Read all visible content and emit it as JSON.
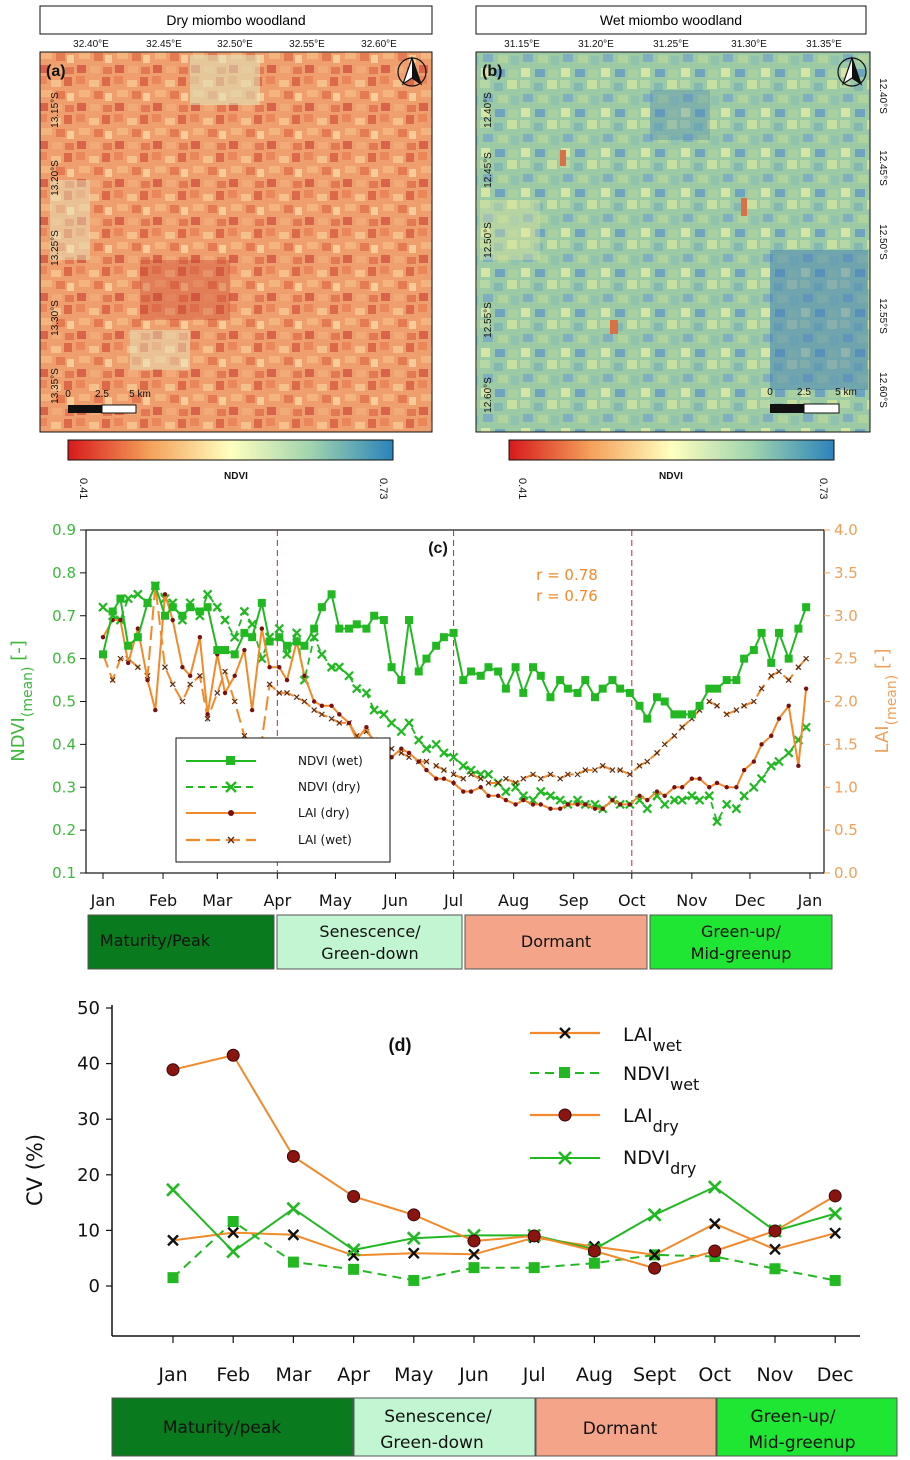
{
  "maps": [
    {
      "title": "Dry miombo woodland",
      "label": "(a)",
      "lon_ticks": [
        "32.40°E",
        "32.45°E",
        "32.50°E",
        "32.55°E",
        "32.60°E"
      ],
      "lat_ticks": [
        "13.15°S",
        "13.20°S",
        "13.25°S",
        "13.30°S",
        "13.35°S"
      ],
      "scalebar": [
        "0",
        "2.5",
        "5 km"
      ],
      "colorbar": {
        "min": "0.41",
        "max": "0.73",
        "label": "NDVI"
      }
    },
    {
      "title": "Wet miombo woodland",
      "label": "(b)",
      "lon_ticks": [
        "31.15°E",
        "31.20°E",
        "31.25°E",
        "31.30°E",
        "31.35°E"
      ],
      "lat_ticks": [
        "12.40°S",
        "12.45°S",
        "12.50°S",
        "12.55°S",
        "12.60°S"
      ],
      "scalebar": [
        "0",
        "2.5",
        "5 km"
      ],
      "colorbar": {
        "min": "0.41",
        "max": "0.73",
        "label": "NDVI"
      }
    }
  ],
  "chart_c": {
    "label": "(c)",
    "ylabel_left_main": "NDVI",
    "ylabel_left_sub": "(mean)",
    "ylabel_left_tail": " [-]",
    "ylabel_right_main": "LAI",
    "ylabel_right_sub": "(mean)",
    "ylabel_right_tail": " [-]",
    "left_ticks": [
      "0.1",
      "0.2",
      "0.3",
      "0.4",
      "0.5",
      "0.6",
      "0.7",
      "0.8",
      "0.9"
    ],
    "right_ticks": [
      "0.0",
      "0.5",
      "1.0",
      "1.5",
      "2.0",
      "2.5",
      "3.0",
      "3.5",
      "4.0"
    ],
    "months": [
      "Jan",
      "Feb",
      "Mar",
      "Apr",
      "May",
      "Jun",
      "Jul",
      "Aug",
      "Sep",
      "Oct",
      "Nov",
      "Dec",
      "Jan"
    ],
    "annotations": [
      "r = 0.78",
      "r = 0.76"
    ],
    "legend": [
      "NDVI (wet)",
      "NDVI (dry)",
      "LAI (dry)",
      "LAI (wet)"
    ],
    "phases": [
      "Maturity/Peak",
      "Senescence/",
      "Green-down",
      "Dormant",
      "Green-up/",
      "Mid-greenup"
    ]
  },
  "chart_d": {
    "label": "(d)",
    "ylabel": "CV (%)",
    "y_ticks": [
      "0",
      "10",
      "20",
      "30",
      "40",
      "50"
    ],
    "months": [
      "Jan",
      "Feb",
      "Mar",
      "Apr",
      "May",
      "Jun",
      "Jul",
      "Aug",
      "Sept",
      "Oct",
      "Nov",
      "Dec"
    ],
    "legend": [
      {
        "main": "LAI",
        "sub": "wet"
      },
      {
        "main": "NDVI",
        "sub": "wet"
      },
      {
        "main": "LAI",
        "sub": "dry"
      },
      {
        "main": "NDVI",
        "sub": "dry"
      }
    ],
    "phases": [
      "Maturity/peak",
      "Senescence/",
      "Green-down",
      "Dormant",
      "Green-up/",
      "Mid-greenup"
    ]
  },
  "colors": {
    "ndvi_green": "#22b822",
    "lai_orange": "#f08a2a",
    "dark_red_marker": "#7a1010",
    "phase_maturity": "#0a7a1e",
    "phase_senescence": "#c2f5d2",
    "phase_dormant": "#f4a488",
    "phase_greenup": "#1ee632"
  },
  "chart_data": [
    {
      "type": "line",
      "title": "(c)",
      "x_unit": "day of year",
      "xlim": [
        1,
        366
      ],
      "ylim_left": [
        0.1,
        0.9
      ],
      "ylim_right": [
        0.0,
        4.0
      ],
      "vertical_lines_day": [
        91,
        182,
        274
      ],
      "series": [
        {
          "name": "NDVI (wet)",
          "axis": "left",
          "x": [
            1,
            6,
            10,
            14,
            19,
            24,
            28,
            33,
            37,
            42,
            46,
            51,
            55,
            60,
            64,
            69,
            74,
            78,
            83,
            87,
            92,
            96,
            101,
            105,
            110,
            114,
            119,
            123,
            128,
            132,
            137,
            141,
            146,
            150,
            155,
            159,
            164,
            168,
            173,
            177,
            182,
            187,
            191,
            196,
            200,
            205,
            209,
            214,
            218,
            223,
            227,
            232,
            237,
            241,
            246,
            250,
            255,
            259,
            264,
            268,
            273,
            278,
            282,
            287,
            291,
            296,
            300,
            305,
            309,
            314,
            318,
            323,
            328,
            332,
            337,
            341,
            346,
            350,
            355,
            360,
            364
          ],
          "y": [
            0.61,
            0.71,
            0.74,
            0.63,
            0.65,
            0.73,
            0.77,
            0.7,
            0.72,
            0.7,
            0.72,
            0.71,
            0.72,
            0.62,
            0.62,
            0.61,
            0.66,
            0.65,
            0.73,
            0.64,
            0.65,
            0.63,
            0.64,
            0.63,
            0.67,
            0.72,
            0.75,
            0.67,
            0.67,
            0.68,
            0.67,
            0.7,
            0.69,
            0.58,
            0.55,
            0.69,
            0.57,
            0.6,
            0.63,
            0.65,
            0.66,
            0.55,
            0.57,
            0.56,
            0.58,
            0.57,
            0.53,
            0.58,
            0.52,
            0.58,
            0.56,
            0.51,
            0.55,
            0.53,
            0.52,
            0.55,
            0.51,
            0.53,
            0.55,
            0.53,
            0.52,
            0.49,
            0.46,
            0.51,
            0.5,
            0.47,
            0.47,
            0.47,
            0.49,
            0.53,
            0.53,
            0.55,
            0.55,
            0.6,
            0.62,
            0.66,
            0.59,
            0.66,
            0.6,
            0.67,
            0.72
          ]
        },
        {
          "name": "NDVI (dry)",
          "axis": "left",
          "x": [
            1,
            6,
            10,
            14,
            19,
            24,
            28,
            33,
            37,
            42,
            46,
            51,
            55,
            60,
            64,
            69,
            74,
            78,
            83,
            87,
            92,
            96,
            101,
            105,
            110,
            114,
            119,
            123,
            128,
            132,
            137,
            141,
            146,
            150,
            155,
            159,
            164,
            168,
            173,
            177,
            182,
            187,
            191,
            196,
            200,
            205,
            209,
            214,
            218,
            223,
            227,
            232,
            237,
            241,
            246,
            250,
            255,
            259,
            264,
            268,
            273,
            278,
            282,
            287,
            291,
            296,
            300,
            305,
            309,
            314,
            318,
            323,
            328,
            332,
            337,
            341,
            346,
            350,
            355,
            360,
            364
          ],
          "y": [
            0.72,
            0.7,
            0.69,
            0.74,
            0.75,
            0.73,
            0.77,
            0.74,
            0.73,
            0.69,
            0.73,
            0.7,
            0.75,
            0.72,
            0.69,
            0.65,
            0.71,
            0.68,
            0.6,
            0.65,
            0.67,
            0.61,
            0.66,
            0.55,
            0.65,
            0.61,
            0.58,
            0.58,
            0.56,
            0.53,
            0.52,
            0.48,
            0.47,
            0.45,
            0.43,
            0.45,
            0.41,
            0.39,
            0.4,
            0.38,
            0.37,
            0.35,
            0.34,
            0.33,
            0.33,
            0.31,
            0.29,
            0.3,
            0.28,
            0.27,
            0.29,
            0.28,
            0.27,
            0.26,
            0.27,
            0.26,
            0.26,
            0.25,
            0.27,
            0.26,
            0.26,
            0.27,
            0.25,
            0.28,
            0.26,
            0.27,
            0.27,
            0.28,
            0.27,
            0.28,
            0.22,
            0.26,
            0.25,
            0.28,
            0.3,
            0.32,
            0.35,
            0.36,
            0.38,
            0.41,
            0.44
          ]
        },
        {
          "name": "LAI (dry)",
          "axis": "right",
          "x": [
            1,
            6,
            10,
            14,
            19,
            24,
            28,
            33,
            37,
            42,
            46,
            51,
            55,
            60,
            64,
            69,
            74,
            78,
            83,
            87,
            92,
            96,
            101,
            105,
            110,
            114,
            119,
            123,
            128,
            132,
            137,
            141,
            146,
            150,
            155,
            159,
            164,
            168,
            173,
            177,
            182,
            187,
            191,
            196,
            200,
            205,
            209,
            214,
            218,
            223,
            227,
            232,
            237,
            241,
            246,
            250,
            255,
            259,
            264,
            268,
            273,
            278,
            282,
            287,
            291,
            296,
            300,
            305,
            309,
            314,
            318,
            323,
            328,
            332,
            337,
            341,
            346,
            350,
            355,
            360,
            364
          ],
          "y": [
            2.75,
            2.95,
            2.95,
            2.45,
            2.85,
            2.25,
            1.9,
            3.25,
            2.95,
            2.4,
            2.3,
            2.75,
            1.85,
            2.55,
            2.1,
            2.3,
            2.6,
            1.9,
            2.85,
            2.4,
            2.4,
            2.25,
            2.7,
            2.3,
            2.0,
            1.95,
            1.95,
            1.85,
            1.75,
            1.55,
            1.7,
            1.5,
            1.4,
            1.35,
            1.45,
            1.4,
            1.3,
            1.2,
            1.1,
            1.1,
            1.05,
            0.95,
            0.95,
            1.0,
            0.9,
            0.9,
            0.85,
            0.8,
            0.85,
            0.8,
            0.8,
            0.75,
            0.75,
            0.8,
            0.8,
            0.8,
            0.75,
            0.75,
            0.85,
            0.8,
            0.8,
            0.9,
            0.85,
            0.95,
            0.9,
            1.0,
            1.0,
            1.1,
            1.1,
            1.0,
            1.05,
            1.0,
            1.0,
            1.2,
            1.3,
            1.5,
            1.6,
            1.8,
            1.95,
            1.25,
            2.15
          ]
        },
        {
          "name": "LAI (wet)",
          "axis": "right",
          "x": [
            1,
            6,
            10,
            14,
            19,
            24,
            28,
            33,
            37,
            42,
            46,
            51,
            55,
            60,
            64,
            69,
            74,
            78,
            83,
            87,
            92,
            96,
            101,
            105,
            110,
            114,
            119,
            123,
            128,
            132,
            137,
            141,
            146,
            150,
            155,
            159,
            164,
            168,
            173,
            177,
            182,
            187,
            191,
            196,
            200,
            205,
            209,
            214,
            218,
            223,
            227,
            232,
            237,
            241,
            246,
            250,
            255,
            259,
            264,
            268,
            273,
            278,
            282,
            287,
            291,
            296,
            300,
            305,
            309,
            314,
            318,
            323,
            328,
            332,
            337,
            341,
            346,
            350,
            355,
            360,
            364
          ],
          "y": [
            2.55,
            2.25,
            2.5,
            2.5,
            2.4,
            2.3,
            3.35,
            2.4,
            2.2,
            2.0,
            2.2,
            2.3,
            1.8,
            2.1,
            2.35,
            2.0,
            1.6,
            1.5,
            1.55,
            2.2,
            2.1,
            2.1,
            2.05,
            2.0,
            1.9,
            1.85,
            1.8,
            1.75,
            1.75,
            1.6,
            1.65,
            1.55,
            1.5,
            1.45,
            1.4,
            1.35,
            1.3,
            1.3,
            1.25,
            1.2,
            1.15,
            1.1,
            1.15,
            1.1,
            1.05,
            1.05,
            1.1,
            1.05,
            1.1,
            1.15,
            1.1,
            1.15,
            1.1,
            1.15,
            1.15,
            1.2,
            1.2,
            1.25,
            1.2,
            1.2,
            1.15,
            1.25,
            1.3,
            1.4,
            1.5,
            1.6,
            1.7,
            1.8,
            1.9,
            2.0,
            1.95,
            1.85,
            1.9,
            1.95,
            2.0,
            2.15,
            2.3,
            2.35,
            2.25,
            2.4,
            2.5
          ]
        }
      ]
    },
    {
      "type": "line",
      "title": "(d)",
      "categories": [
        "Jan",
        "Feb",
        "Mar",
        "Apr",
        "May",
        "Jun",
        "Jul",
        "Aug",
        "Sept",
        "Oct",
        "Nov",
        "Dec"
      ],
      "ylabel": "CV (%)",
      "ylim": [
        -8,
        50
      ],
      "series": [
        {
          "name": "LAIwet",
          "values": [
            8.2,
            9.6,
            9.2,
            5.5,
            5.9,
            5.7,
            8.7,
            7.1,
            5.6,
            11.2,
            6.6,
            9.5
          ]
        },
        {
          "name": "NDVIwet",
          "values": [
            1.5,
            11.6,
            4.3,
            3.0,
            1.0,
            3.3,
            3.3,
            4.1,
            5.6,
            5.3,
            3.1,
            1.0
          ]
        },
        {
          "name": "LAIdry",
          "values": [
            38.9,
            41.5,
            23.3,
            16.1,
            12.8,
            8.1,
            9.0,
            6.3,
            3.2,
            6.3,
            9.9,
            16.2
          ]
        },
        {
          "name": "NDVIdry",
          "values": [
            17.3,
            6.2,
            13.9,
            6.5,
            8.6,
            9.1,
            9.1,
            6.6,
            12.8,
            17.8,
            9.9,
            13.0
          ]
        }
      ]
    }
  ]
}
